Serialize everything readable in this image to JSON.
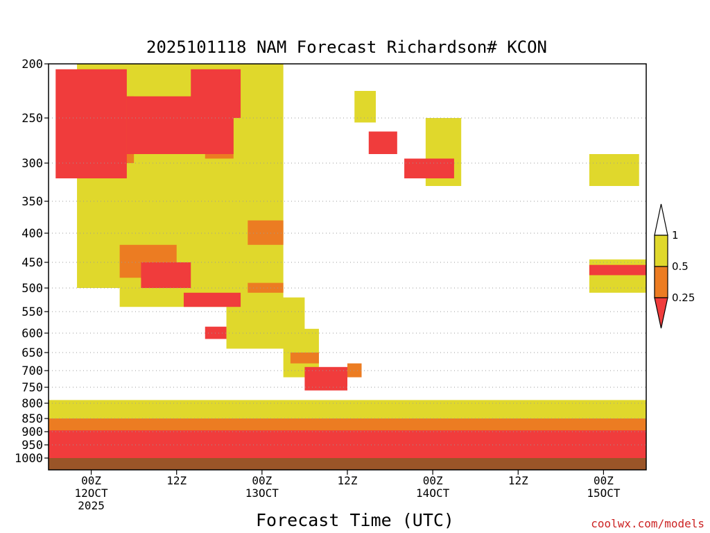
{
  "chart_data": {
    "type": "heatmap",
    "title": "2025101118 NAM Forecast Richardson# KCON",
    "xlabel": "Forecast Time (UTC)",
    "ylabel": "",
    "credit": "coolwx.com/models",
    "y_axis": {
      "ticks": [
        "200",
        "250",
        "300",
        "350",
        "400",
        "450",
        "500",
        "550",
        "600",
        "650",
        "700",
        "750",
        "800",
        "850",
        "900",
        "950",
        "1000"
      ],
      "range": [
        200,
        1000
      ],
      "inverted": true,
      "gridlines": "dotted"
    },
    "x_axis": {
      "range_hours": [
        0,
        84
      ],
      "ticks": [
        {
          "hour": 6,
          "line1": "00Z",
          "line2": "12OCT",
          "line3": "2025"
        },
        {
          "hour": 18,
          "line1": "12Z",
          "line2": "",
          "line3": ""
        },
        {
          "hour": 30,
          "line1": "00Z",
          "line2": "13OCT",
          "line3": ""
        },
        {
          "hour": 42,
          "line1": "12Z",
          "line2": "",
          "line3": ""
        },
        {
          "hour": 54,
          "line1": "00Z",
          "line2": "14OCT",
          "line3": ""
        },
        {
          "hour": 66,
          "line1": "12Z",
          "line2": "",
          "line3": ""
        },
        {
          "hour": 78,
          "line1": "00Z",
          "line2": "15OCT",
          "line3": ""
        }
      ]
    },
    "colorbar": {
      "bins": [
        {
          "label": "< 0.25",
          "color": "#f03c3c"
        },
        {
          "label": "0.25 - 0.5",
          "color": "#ec7c22"
        },
        {
          "label": "0.5 - 1",
          "color": "#e0d82c"
        },
        {
          "label": "> 1",
          "color": "#ffffff"
        }
      ],
      "tick_labels": [
        "1",
        "0.5",
        "0.25"
      ]
    },
    "ground_color": "#9a5528",
    "ground_level_hpa": 1000,
    "regions": [
      {
        "bin": 2,
        "hours": [
          4,
          11
        ],
        "hpa": [
          200,
          500
        ]
      },
      {
        "bin": 2,
        "hours": [
          10,
          33
        ],
        "hpa": [
          200,
          540
        ]
      },
      {
        "bin": 2,
        "hours": [
          25,
          36
        ],
        "hpa": [
          520,
          640
        ]
      },
      {
        "bin": 2,
        "hours": [
          33,
          38
        ],
        "hpa": [
          590,
          720
        ]
      },
      {
        "bin": 2,
        "hours": [
          43,
          46
        ],
        "hpa": [
          225,
          255
        ]
      },
      {
        "bin": 2,
        "hours": [
          53,
          58
        ],
        "hpa": [
          250,
          330
        ]
      },
      {
        "bin": 2,
        "hours": [
          76,
          83
        ],
        "hpa": [
          290,
          330
        ]
      },
      {
        "bin": 2,
        "hours": [
          76,
          84
        ],
        "hpa": [
          445,
          510
        ]
      },
      {
        "bin": 2,
        "hours": [
          0,
          84
        ],
        "hpa": [
          790,
          960
        ]
      },
      {
        "bin": 1,
        "hours": [
          8,
          12
        ],
        "hpa": [
          230,
          300
        ]
      },
      {
        "bin": 1,
        "hours": [
          10,
          18
        ],
        "hpa": [
          420,
          480
        ]
      },
      {
        "bin": 1,
        "hours": [
          22,
          26
        ],
        "hpa": [
          240,
          295
        ]
      },
      {
        "bin": 1,
        "hours": [
          28,
          33
        ],
        "hpa": [
          380,
          420
        ]
      },
      {
        "bin": 1,
        "hours": [
          28,
          33
        ],
        "hpa": [
          490,
          510
        ]
      },
      {
        "bin": 1,
        "hours": [
          34,
          38
        ],
        "hpa": [
          650,
          680
        ]
      },
      {
        "bin": 1,
        "hours": [
          42,
          44
        ],
        "hpa": [
          680,
          720
        ]
      },
      {
        "bin": 1,
        "hours": [
          0,
          84
        ],
        "hpa": [
          850,
          950
        ]
      },
      {
        "bin": 0,
        "hours": [
          1,
          11
        ],
        "hpa": [
          205,
          320
        ]
      },
      {
        "bin": 0,
        "hours": [
          11,
          26
        ],
        "hpa": [
          230,
          290
        ]
      },
      {
        "bin": 0,
        "hours": [
          20,
          27
        ],
        "hpa": [
          205,
          250
        ]
      },
      {
        "bin": 0,
        "hours": [
          13,
          20
        ],
        "hpa": [
          450,
          500
        ]
      },
      {
        "bin": 0,
        "hours": [
          19,
          27
        ],
        "hpa": [
          510,
          540
        ]
      },
      {
        "bin": 0,
        "hours": [
          22,
          25
        ],
        "hpa": [
          585,
          615
        ]
      },
      {
        "bin": 0,
        "hours": [
          36,
          42
        ],
        "hpa": [
          690,
          760
        ]
      },
      {
        "bin": 0,
        "hours": [
          45,
          49
        ],
        "hpa": [
          265,
          290
        ]
      },
      {
        "bin": 0,
        "hours": [
          50,
          57
        ],
        "hpa": [
          295,
          320
        ]
      },
      {
        "bin": 0,
        "hours": [
          76,
          84
        ],
        "hpa": [
          455,
          475
        ]
      },
      {
        "bin": 0,
        "hours": [
          0,
          84
        ],
        "hpa": [
          895,
          1000
        ]
      }
    ]
  }
}
